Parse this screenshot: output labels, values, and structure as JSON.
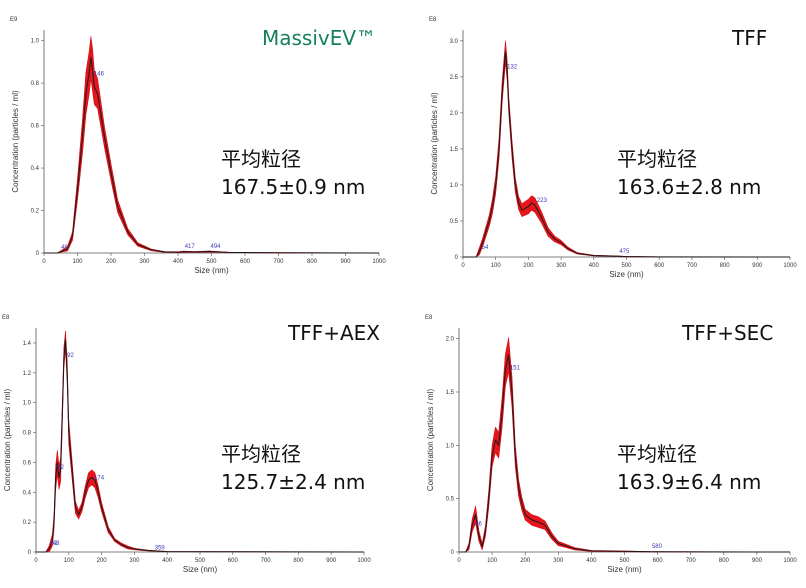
{
  "chart_data": [
    {
      "type": "line",
      "title": "MassivEV™",
      "stat_label": "平均粒径",
      "stat_value": "167.5±0.9 nm",
      "xlabel": "Size (nm)",
      "ylabel": "Concentration (particles / ml)",
      "y_multiplier": "E9",
      "xlim": [
        0,
        1000
      ],
      "ylim": [
        0,
        1.05
      ],
      "xticks": [
        "0",
        "100",
        "200",
        "300",
        "400",
        "500",
        "600",
        "700",
        "800",
        "900",
        "1000"
      ],
      "yticks": [
        {
          "v": 0,
          "t": "0"
        },
        {
          "v": 0.2,
          "t": "0.2"
        },
        {
          "v": 0.4,
          "t": "0.4"
        },
        {
          "v": 0.6,
          "t": "0.6"
        },
        {
          "v": 0.8,
          "t": "0.8"
        },
        {
          "v": 1.0,
          "t": "1.0"
        }
      ],
      "x": [
        0,
        40,
        55,
        70,
        85,
        100,
        115,
        125,
        135,
        140,
        145,
        150,
        160,
        170,
        180,
        200,
        220,
        250,
        280,
        320,
        360,
        400,
        417,
        450,
        494,
        550,
        700,
        1000
      ],
      "y": [
        0,
        0,
        0.01,
        0.02,
        0.08,
        0.3,
        0.55,
        0.75,
        0.85,
        0.92,
        0.86,
        0.78,
        0.75,
        0.65,
        0.55,
        0.38,
        0.22,
        0.1,
        0.04,
        0.015,
        0.005,
        0.004,
        0.006,
        0.005,
        0.007,
        0.003,
        0.001,
        0
      ],
      "band": [
        0,
        0,
        0.005,
        0.01,
        0.02,
        0.05,
        0.08,
        0.1,
        0.1,
        0.1,
        0.1,
        0.08,
        0.07,
        0.06,
        0.05,
        0.04,
        0.03,
        0.015,
        0.008,
        0.004,
        0.002,
        0.002,
        0.003,
        0.002,
        0.003,
        0.001,
        0.001,
        0
      ],
      "peaks": [
        {
          "x": 48,
          "y": 0.015,
          "label": "48"
        },
        {
          "x": 146,
          "y": 0.83,
          "label": "146"
        },
        {
          "x": 417,
          "y": 0.02,
          "label": "417"
        },
        {
          "x": 494,
          "y": 0.02,
          "label": "494"
        }
      ]
    },
    {
      "type": "line",
      "title": "TFF",
      "stat_label": "平均粒径",
      "stat_value": "163.6±2.8 nm",
      "xlabel": "Size (nm)",
      "ylabel": "Concentration (particles / ml)",
      "y_multiplier": "E8",
      "xlim": [
        0,
        1000
      ],
      "ylim": [
        0,
        3.15
      ],
      "xticks": [
        "0",
        "100",
        "200",
        "300",
        "400",
        "500",
        "600",
        "700",
        "800",
        "900",
        "1000"
      ],
      "yticks": [
        {
          "v": 0,
          "t": "0"
        },
        {
          "v": 0.5,
          "t": "0.5"
        },
        {
          "v": 1.0,
          "t": "1.0"
        },
        {
          "v": 1.5,
          "t": "1.5"
        },
        {
          "v": 2.0,
          "t": "2.0"
        },
        {
          "v": 2.5,
          "t": "2.5"
        },
        {
          "v": 3.0,
          "t": "3.0"
        }
      ],
      "x": [
        0,
        40,
        50,
        60,
        70,
        80,
        90,
        100,
        110,
        120,
        130,
        135,
        140,
        150,
        160,
        170,
        180,
        200,
        210,
        220,
        240,
        260,
        280,
        300,
        320,
        350,
        400,
        475,
        500,
        600,
        1000
      ],
      "y": [
        0,
        0,
        0.08,
        0.2,
        0.35,
        0.5,
        0.7,
        1.0,
        1.5,
        2.3,
        2.85,
        2.6,
        2.1,
        1.5,
        1.0,
        0.75,
        0.65,
        0.7,
        0.75,
        0.72,
        0.55,
        0.35,
        0.25,
        0.2,
        0.12,
        0.05,
        0.02,
        0.01,
        0.005,
        0.002,
        0
      ],
      "band": [
        0,
        0,
        0.05,
        0.06,
        0.07,
        0.08,
        0.1,
        0.12,
        0.14,
        0.15,
        0.15,
        0.14,
        0.12,
        0.12,
        0.1,
        0.09,
        0.09,
        0.1,
        0.1,
        0.1,
        0.08,
        0.06,
        0.04,
        0.03,
        0.02,
        0.01,
        0.005,
        0.005,
        0.003,
        0.001,
        0
      ],
      "peaks": [
        {
          "x": 54,
          "y": 0.1,
          "label": "54"
        },
        {
          "x": 132,
          "y": 2.6,
          "label": "132"
        },
        {
          "x": 223,
          "y": 0.75,
          "label": "223"
        },
        {
          "x": 475,
          "y": 0.04,
          "label": "475"
        }
      ]
    },
    {
      "type": "line",
      "title": "TFF+AEX",
      "stat_label": "平均粒径",
      "stat_value": "125.7±2.4 nm",
      "xlabel": "Size (nm)",
      "ylabel": "Concentration (particles / ml)",
      "y_multiplier": "E8",
      "xlim": [
        0,
        1000
      ],
      "ylim": [
        0,
        1.5
      ],
      "xticks": [
        "0",
        "100",
        "200",
        "300",
        "400",
        "500",
        "600",
        "700",
        "800",
        "900",
        "1000"
      ],
      "yticks": [
        {
          "v": 0,
          "t": "0"
        },
        {
          "v": 0.2,
          "t": "0.2"
        },
        {
          "v": 0.4,
          "t": "0.4"
        },
        {
          "v": 0.6,
          "t": "0.6"
        },
        {
          "v": 0.8,
          "t": "0.8"
        },
        {
          "v": 1.0,
          "t": "1.0"
        },
        {
          "v": 1.2,
          "t": "1.2"
        },
        {
          "v": 1.4,
          "t": "1.4"
        }
      ],
      "x": [
        0,
        30,
        40,
        45,
        50,
        55,
        60,
        65,
        70,
        75,
        80,
        85,
        90,
        95,
        100,
        110,
        120,
        130,
        140,
        150,
        160,
        170,
        180,
        190,
        200,
        220,
        240,
        260,
        280,
        300,
        340,
        400,
        1000
      ],
      "y": [
        0,
        0,
        0.02,
        0.05,
        0.08,
        0.2,
        0.5,
        0.6,
        0.5,
        0.55,
        0.9,
        1.3,
        1.42,
        1.2,
        0.8,
        0.55,
        0.3,
        0.25,
        0.3,
        0.4,
        0.48,
        0.5,
        0.48,
        0.4,
        0.3,
        0.15,
        0.08,
        0.05,
        0.03,
        0.02,
        0.01,
        0.003,
        0
      ],
      "band": [
        0,
        0,
        0.02,
        0.03,
        0.04,
        0.05,
        0.08,
        0.08,
        0.08,
        0.08,
        0.08,
        0.07,
        0.06,
        0.08,
        0.08,
        0.06,
        0.04,
        0.03,
        0.03,
        0.04,
        0.05,
        0.05,
        0.05,
        0.04,
        0.03,
        0.02,
        0.01,
        0.01,
        0.01,
        0.005,
        0.003,
        0.001,
        0
      ],
      "peaks": [
        {
          "x": 42,
          "y": 0.04,
          "label": "42"
        },
        {
          "x": 48,
          "y": 0.04,
          "label": "48"
        },
        {
          "x": 62,
          "y": 0.55,
          "label": "62"
        },
        {
          "x": 92,
          "y": 1.3,
          "label": "92"
        },
        {
          "x": 174,
          "y": 0.48,
          "label": "174"
        },
        {
          "x": 359,
          "y": 0.01,
          "label": "359"
        }
      ]
    },
    {
      "type": "line",
      "title": "TFF+SEC",
      "stat_label": "平均粒径",
      "stat_value": "163.9±6.4 nm",
      "xlabel": "Size (nm)",
      "ylabel": "Concentration (particles / ml)",
      "y_multiplier": "E8",
      "xlim": [
        0,
        1000
      ],
      "ylim": [
        0,
        2.1
      ],
      "xticks": [
        "0",
        "100",
        "200",
        "300",
        "400",
        "500",
        "600",
        "700",
        "800",
        "900",
        "1000"
      ],
      "yticks": [
        {
          "v": 0,
          "t": "0"
        },
        {
          "v": 0.5,
          "t": "0.5"
        },
        {
          "v": 1.0,
          "t": "1.0"
        },
        {
          "v": 1.5,
          "t": "1.5"
        },
        {
          "v": 2.0,
          "t": "2.0"
        }
      ],
      "x": [
        0,
        20,
        30,
        40,
        50,
        60,
        70,
        80,
        90,
        100,
        110,
        120,
        130,
        140,
        150,
        160,
        170,
        180,
        190,
        200,
        220,
        240,
        260,
        280,
        300,
        350,
        400,
        580,
        1000
      ],
      "y": [
        0,
        0,
        0.05,
        0.25,
        0.35,
        0.15,
        0.05,
        0.2,
        0.5,
        0.9,
        1.05,
        1.0,
        1.3,
        1.7,
        1.85,
        1.5,
        0.9,
        0.6,
        0.45,
        0.35,
        0.3,
        0.28,
        0.25,
        0.15,
        0.08,
        0.03,
        0.01,
        0.003,
        0
      ],
      "band": [
        0,
        0,
        0.03,
        0.06,
        0.08,
        0.05,
        0.03,
        0.05,
        0.08,
        0.1,
        0.12,
        0.12,
        0.14,
        0.15,
        0.16,
        0.14,
        0.1,
        0.08,
        0.06,
        0.05,
        0.05,
        0.05,
        0.04,
        0.03,
        0.02,
        0.01,
        0.005,
        0.002,
        0
      ],
      "peaks": [
        {
          "x": 46,
          "y": 0.24,
          "label": "46"
        },
        {
          "x": 151,
          "y": 1.7,
          "label": "151"
        },
        {
          "x": 580,
          "y": 0.03,
          "label": "580"
        }
      ]
    }
  ]
}
